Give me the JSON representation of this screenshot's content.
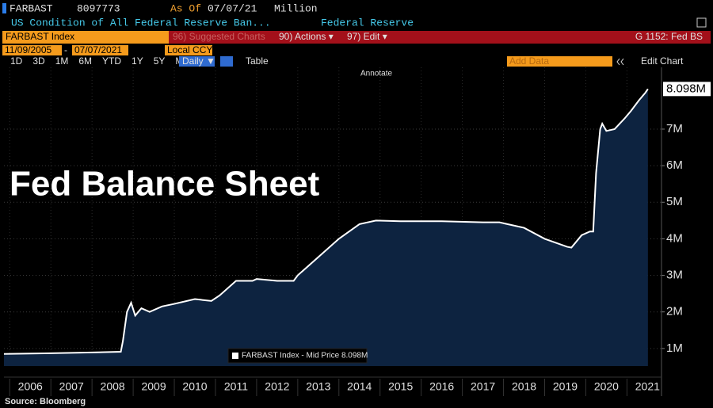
{
  "header": {
    "ticker": "FARBAST",
    "value": "8097773",
    "as_of_label": "As Of",
    "as_of_date": "07/07/21",
    "units": "Million",
    "description": "US Condition of All Federal Reserve Ban...",
    "source": "Federal Reserve"
  },
  "toolbar": {
    "security": "FARBAST Index",
    "suggested": "96) Suggested Charts",
    "actions": "90) Actions ▾",
    "edit": "97) Edit ▾",
    "page": "G 1152: Fed BS",
    "start_date": "11/09/2005",
    "date_separator": "-",
    "end_date": "07/07/2021",
    "currency": "Local CCY",
    "periods": [
      "1D",
      "3D",
      "1M",
      "6M",
      "YTD",
      "1Y",
      "5Y",
      "Max"
    ],
    "frequency": "Daily ▼",
    "table": "Table",
    "add_data": "Add Data",
    "edit_chart": "Edit Chart",
    "annotate": "Annotate"
  },
  "chart_data": {
    "type": "area",
    "title": "Fed Balance Sheet",
    "x": [
      2005.86,
      2007.0,
      2008.0,
      2008.7,
      2008.75,
      2008.85,
      2008.95,
      2009.05,
      2009.2,
      2009.4,
      2009.7,
      2010.0,
      2010.5,
      2010.9,
      2011.1,
      2011.5,
      2011.9,
      2012.0,
      2012.5,
      2012.9,
      2013.0,
      2013.5,
      2014.0,
      2014.5,
      2014.9,
      2015.5,
      2016.5,
      2017.5,
      2017.9,
      2018.5,
      2019.0,
      2019.55,
      2019.65,
      2019.9,
      2020.1,
      2020.18,
      2020.25,
      2020.35,
      2020.4,
      2020.5,
      2020.7,
      2020.95,
      2021.1,
      2021.3,
      2021.45,
      2021.51
    ],
    "series": [
      {
        "name": "FARBAST Index - Mid Price 8.098M",
        "color": "#ffffff",
        "fill": "#0d2340",
        "last_value_label": "8.098M",
        "values": [
          0.85,
          0.87,
          0.89,
          0.91,
          1.2,
          2.0,
          2.25,
          1.9,
          2.1,
          2.0,
          2.15,
          2.22,
          2.35,
          2.3,
          2.45,
          2.85,
          2.85,
          2.9,
          2.85,
          2.85,
          3.0,
          3.5,
          4.0,
          4.4,
          4.5,
          4.48,
          4.48,
          4.45,
          4.45,
          4.3,
          4.0,
          3.78,
          3.76,
          4.1,
          4.2,
          4.2,
          5.8,
          7.0,
          7.15,
          6.95,
          7.0,
          7.3,
          7.5,
          7.8,
          8.0,
          8.098
        ]
      }
    ],
    "xlim": [
      2005.86,
      2021.84
    ],
    "xticks": [
      2006,
      2007,
      2008,
      2009,
      2010,
      2011,
      2012,
      2013,
      2014,
      2015,
      2016,
      2017,
      2018,
      2019,
      2020,
      2021
    ],
    "ylim": [
      0.52,
      8.69
    ],
    "yticks": [
      {
        "value": 1,
        "label": "1M"
      },
      {
        "value": 2,
        "label": "2M"
      },
      {
        "value": 3,
        "label": "3M"
      },
      {
        "value": 4,
        "label": "4M"
      },
      {
        "value": 5,
        "label": "5M"
      },
      {
        "value": 6,
        "label": "6M"
      },
      {
        "value": 7,
        "label": "7M"
      }
    ],
    "grid": true
  },
  "footer": {
    "source": "Source: Bloomberg"
  }
}
